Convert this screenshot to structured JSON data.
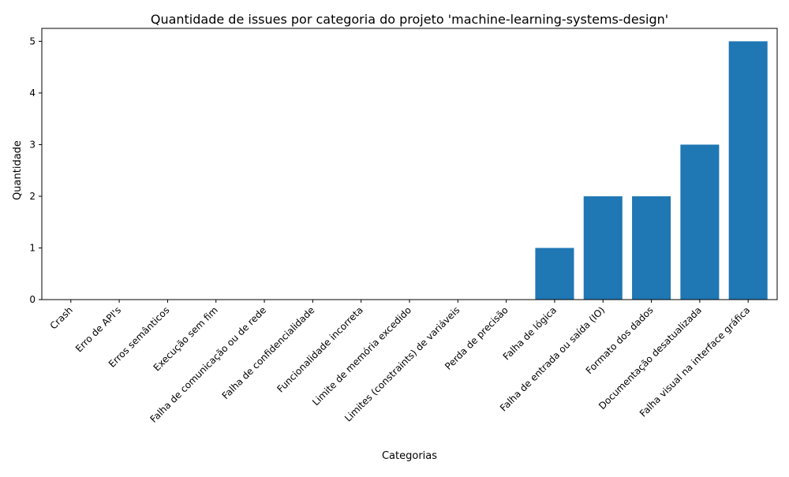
{
  "chart_data": {
    "type": "bar",
    "title": "Quantidade de issues por categoria do projeto 'machine-learning-systems-design'",
    "xlabel": "Categorias",
    "ylabel": "Quantidade",
    "categories": [
      "Crash",
      "Erro de API's",
      "Erros semânticos",
      "Execução sem fim",
      "Falha de comunicação ou de rede",
      "Falha de confidencialidade",
      "Funcionalidade incorreta",
      "Limite de memória excedido",
      "Limites (constraints) de variáveis",
      "Perda de precisão",
      "Falha de lógica",
      "Falha de entrada ou saída (IO)",
      "Formato dos dados",
      "Documentação desatualizada",
      "Falha visual na interface gráfica"
    ],
    "values": [
      0,
      0,
      0,
      0,
      0,
      0,
      0,
      0,
      0,
      0,
      1,
      2,
      2,
      3,
      5
    ],
    "ylim": [
      0,
      5.25
    ],
    "yticks": [
      0,
      1,
      2,
      3,
      4,
      5
    ],
    "bar_color": "#1f77b4",
    "grid": false,
    "legend": "none"
  }
}
